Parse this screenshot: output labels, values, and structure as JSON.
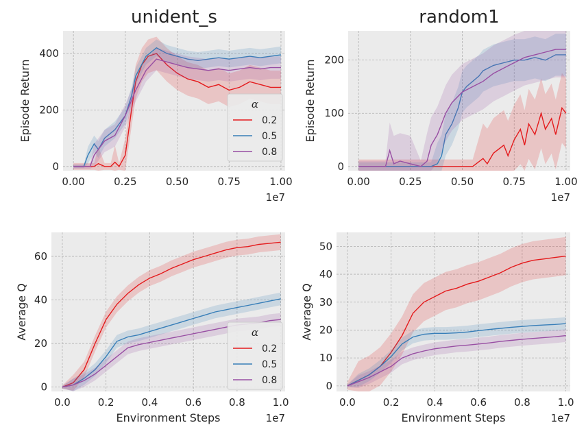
{
  "colors": {
    "alpha_0.2": "#e41a1c",
    "alpha_0.5": "#377eb8",
    "alpha_0.8": "#984ea3",
    "panel_bg": "#ebebeb",
    "grid": "#b0b0b0"
  },
  "chart_data": [
    {
      "type": "line",
      "title": "unident_s",
      "xlabel": "",
      "ylabel": "Episode Return",
      "x_offset_label": "1e7",
      "xlim": [
        -0.05,
        1.02
      ],
      "ylim": [
        -15,
        480
      ],
      "xticks": [
        "0.00",
        "0.25",
        "0.50",
        "0.75",
        "1.00"
      ],
      "xtick_values": [
        0.0,
        0.25,
        0.5,
        0.75,
        1.0
      ],
      "yticks": [
        "0",
        "200",
        "400"
      ],
      "ytick_values": [
        0,
        200,
        400
      ],
      "grid": true,
      "legend": {
        "title": "α",
        "position": "center-right",
        "entries": [
          "0.2",
          "0.5",
          "0.8"
        ]
      },
      "series": [
        {
          "name": "0.2",
          "color": "#e41a1c",
          "band": 0.12,
          "x": [
            0.0,
            0.08,
            0.1,
            0.12,
            0.15,
            0.18,
            0.2,
            0.22,
            0.25,
            0.28,
            0.3,
            0.33,
            0.36,
            0.4,
            0.45,
            0.5,
            0.55,
            0.6,
            0.65,
            0.7,
            0.75,
            0.8,
            0.85,
            0.9,
            0.95,
            1.0
          ],
          "y": [
            0,
            0,
            0,
            10,
            0,
            0,
            15,
            0,
            40,
            200,
            300,
            360,
            390,
            400,
            360,
            330,
            310,
            300,
            280,
            290,
            270,
            280,
            300,
            290,
            280,
            280
          ]
        },
        {
          "name": "0.5",
          "color": "#377eb8",
          "band": 0.06,
          "x": [
            0.0,
            0.05,
            0.07,
            0.1,
            0.12,
            0.15,
            0.2,
            0.25,
            0.28,
            0.3,
            0.35,
            0.4,
            0.45,
            0.5,
            0.55,
            0.6,
            0.65,
            0.7,
            0.75,
            0.8,
            0.85,
            0.9,
            0.95,
            1.0
          ],
          "y": [
            0,
            0,
            40,
            80,
            60,
            100,
            130,
            180,
            250,
            320,
            390,
            420,
            400,
            390,
            380,
            375,
            380,
            385,
            380,
            385,
            390,
            385,
            390,
            395
          ]
        },
        {
          "name": "0.8",
          "color": "#984ea3",
          "band": 0.08,
          "x": [
            0.0,
            0.08,
            0.1,
            0.15,
            0.2,
            0.25,
            0.3,
            0.35,
            0.4,
            0.45,
            0.5,
            0.55,
            0.6,
            0.65,
            0.7,
            0.75,
            0.8,
            0.85,
            0.9,
            0.95,
            1.0
          ],
          "y": [
            0,
            0,
            40,
            90,
            110,
            180,
            270,
            340,
            380,
            370,
            360,
            350,
            345,
            340,
            345,
            340,
            345,
            350,
            345,
            350,
            350
          ]
        }
      ]
    },
    {
      "type": "line",
      "title": "random1",
      "xlabel": "",
      "ylabel": "Episode Return",
      "x_offset_label": "1e7",
      "xlim": [
        -0.05,
        1.02
      ],
      "ylim": [
        -8,
        255
      ],
      "xticks": [
        "0.00",
        "0.25",
        "0.50",
        "0.75",
        "1.00"
      ],
      "xtick_values": [
        0.0,
        0.25,
        0.5,
        0.75,
        1.0
      ],
      "yticks": [
        "0",
        "100",
        "200"
      ],
      "ytick_values": [
        0,
        100,
        200
      ],
      "grid": true,
      "series": [
        {
          "name": "0.2",
          "color": "#e41a1c",
          "band": 0.25,
          "x": [
            0.0,
            0.55,
            0.6,
            0.62,
            0.65,
            0.7,
            0.72,
            0.75,
            0.78,
            0.8,
            0.82,
            0.85,
            0.88,
            0.9,
            0.93,
            0.95,
            0.98,
            1.0
          ],
          "y": [
            0,
            0,
            15,
            5,
            25,
            40,
            20,
            50,
            70,
            40,
            80,
            60,
            100,
            70,
            90,
            60,
            110,
            100
          ]
        },
        {
          "name": "0.5",
          "color": "#377eb8",
          "band": 0.15,
          "x": [
            0.0,
            0.35,
            0.38,
            0.4,
            0.42,
            0.45,
            0.48,
            0.5,
            0.52,
            0.55,
            0.58,
            0.6,
            0.65,
            0.7,
            0.75,
            0.8,
            0.85,
            0.9,
            0.95,
            1.0
          ],
          "y": [
            0,
            0,
            5,
            20,
            60,
            80,
            110,
            140,
            150,
            160,
            170,
            180,
            190,
            195,
            200,
            200,
            205,
            200,
            210,
            210
          ]
        },
        {
          "name": "0.8",
          "color": "#984ea3",
          "band": 0.2,
          "x": [
            0.0,
            0.13,
            0.15,
            0.17,
            0.2,
            0.25,
            0.3,
            0.33,
            0.35,
            0.38,
            0.4,
            0.42,
            0.45,
            0.5,
            0.55,
            0.6,
            0.65,
            0.7,
            0.75,
            0.8,
            0.85,
            0.9,
            0.95,
            1.0
          ],
          "y": [
            0,
            0,
            30,
            5,
            10,
            5,
            0,
            10,
            40,
            60,
            80,
            100,
            120,
            140,
            150,
            160,
            175,
            185,
            195,
            205,
            210,
            215,
            220,
            220
          ]
        }
      ]
    },
    {
      "type": "line",
      "title": "",
      "xlabel": "Environment Steps",
      "ylabel": "Average Q",
      "x_offset_label": "1e7",
      "xlim": [
        -0.05,
        1.02
      ],
      "ylim": [
        -2,
        71
      ],
      "xticks": [
        "0.0",
        "0.2",
        "0.4",
        "0.6",
        "0.8",
        "1.0"
      ],
      "xtick_values": [
        0.0,
        0.2,
        0.4,
        0.6,
        0.8,
        1.0
      ],
      "yticks": [
        "0",
        "20",
        "40",
        "60"
      ],
      "ytick_values": [
        0,
        20,
        40,
        60
      ],
      "grid": true,
      "legend": {
        "title": "α",
        "position": "lower-right",
        "entries": [
          "0.2",
          "0.5",
          "0.8"
        ]
      },
      "series": [
        {
          "name": "0.2",
          "color": "#e41a1c",
          "band": 0.05,
          "x": [
            0.0,
            0.05,
            0.1,
            0.15,
            0.2,
            0.25,
            0.3,
            0.35,
            0.4,
            0.45,
            0.5,
            0.55,
            0.6,
            0.65,
            0.7,
            0.75,
            0.8,
            0.85,
            0.9,
            0.95,
            1.0
          ],
          "y": [
            0,
            2,
            8,
            20,
            31,
            38,
            43,
            47,
            50,
            52,
            54.5,
            56.5,
            58.5,
            60,
            61.5,
            63,
            64,
            64.5,
            65.5,
            66,
            66.5
          ]
        },
        {
          "name": "0.5",
          "color": "#377eb8",
          "band": 0.04,
          "x": [
            0.0,
            0.05,
            0.1,
            0.15,
            0.2,
            0.25,
            0.3,
            0.35,
            0.4,
            0.45,
            0.5,
            0.55,
            0.6,
            0.65,
            0.7,
            0.75,
            0.8,
            0.85,
            0.9,
            0.95,
            1.0
          ],
          "y": [
            0,
            1,
            4,
            8,
            14,
            21,
            23,
            24,
            25.5,
            27,
            28.5,
            30,
            31.5,
            33,
            34.5,
            35.5,
            36.5,
            37.5,
            38.5,
            39.5,
            40.5
          ]
        },
        {
          "name": "0.8",
          "color": "#984ea3",
          "band": 0.04,
          "x": [
            0.0,
            0.05,
            0.1,
            0.15,
            0.2,
            0.25,
            0.3,
            0.35,
            0.4,
            0.45,
            0.5,
            0.55,
            0.6,
            0.65,
            0.7,
            0.75,
            0.8,
            0.85,
            0.9,
            0.95,
            1.0
          ],
          "y": [
            0,
            1,
            3,
            6,
            10,
            14,
            18,
            19.5,
            20.5,
            21.5,
            22.5,
            23.5,
            24.5,
            25.5,
            26.5,
            27.5,
            28.5,
            29,
            29.5,
            30.5,
            31
          ]
        }
      ]
    },
    {
      "type": "line",
      "title": "",
      "xlabel": "Environment Steps",
      "ylabel": "Average Q",
      "x_offset_label": "1e7",
      "xlim": [
        -0.05,
        1.02
      ],
      "ylim": [
        -2,
        55
      ],
      "xticks": [
        "0.0",
        "0.2",
        "0.4",
        "0.6",
        "0.8",
        "1.0"
      ],
      "xtick_values": [
        0.0,
        0.2,
        0.4,
        0.6,
        0.8,
        1.0
      ],
      "yticks": [
        "0",
        "10",
        "20",
        "30",
        "40",
        "50"
      ],
      "ytick_values": [
        0,
        10,
        20,
        30,
        40,
        50
      ],
      "grid": true,
      "series": [
        {
          "name": "0.2",
          "color": "#e41a1c",
          "band": 0.12,
          "x": [
            0.0,
            0.05,
            0.1,
            0.15,
            0.2,
            0.25,
            0.3,
            0.35,
            0.4,
            0.45,
            0.5,
            0.55,
            0.6,
            0.65,
            0.7,
            0.75,
            0.8,
            0.85,
            0.9,
            0.95,
            1.0
          ],
          "y": [
            0,
            2,
            4,
            7,
            12,
            18,
            26,
            30,
            32,
            34,
            35,
            36.5,
            37.5,
            39,
            40.5,
            42.5,
            44,
            45,
            45.5,
            46,
            46.5
          ]
        },
        {
          "name": "0.5",
          "color": "#377eb8",
          "band": 0.04,
          "x": [
            0.0,
            0.05,
            0.1,
            0.15,
            0.2,
            0.25,
            0.3,
            0.35,
            0.4,
            0.45,
            0.5,
            0.55,
            0.6,
            0.65,
            0.7,
            0.75,
            0.8,
            0.85,
            0.9,
            0.95,
            1.0
          ],
          "y": [
            0,
            2,
            4,
            7,
            10.5,
            15,
            17.5,
            18.5,
            18.8,
            18.8,
            19,
            19.3,
            19.8,
            20.2,
            20.6,
            21,
            21.3,
            21.6,
            21.8,
            22,
            22.3
          ]
        },
        {
          "name": "0.8",
          "color": "#984ea3",
          "band": 0.04,
          "x": [
            0.0,
            0.05,
            0.1,
            0.15,
            0.2,
            0.25,
            0.3,
            0.35,
            0.4,
            0.45,
            0.5,
            0.55,
            0.6,
            0.65,
            0.7,
            0.75,
            0.8,
            0.85,
            0.9,
            0.95,
            1.0
          ],
          "y": [
            0,
            1.5,
            3,
            5,
            7,
            10,
            11.5,
            12.5,
            13.3,
            13.8,
            14.3,
            14.6,
            15,
            15.4,
            15.9,
            16.3,
            16.7,
            17,
            17.3,
            17.6,
            18
          ]
        }
      ]
    }
  ]
}
